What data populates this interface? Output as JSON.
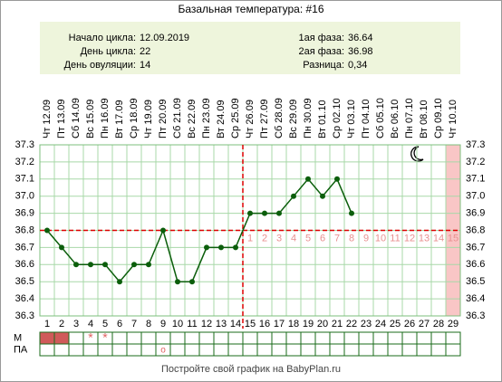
{
  "chart_data": {
    "type": "line",
    "title": "Базальная температура: #16",
    "info_left": [
      {
        "label": "Начало цикла:",
        "value": "12.09.2019"
      },
      {
        "label": "День цикла:",
        "value": "22"
      },
      {
        "label": "День овуляции:",
        "value": "14"
      }
    ],
    "info_right": [
      {
        "label": "1ая фаза:",
        "value": "36.64"
      },
      {
        "label": "2ая фаза:",
        "value": "36.98"
      },
      {
        "label": "Разница:",
        "value": "0,34"
      }
    ],
    "categories": [
      1,
      2,
      3,
      4,
      5,
      6,
      7,
      8,
      9,
      10,
      11,
      12,
      13,
      14,
      15,
      16,
      17,
      18,
      19,
      20,
      21,
      22,
      23,
      24,
      25,
      26,
      27,
      28,
      29
    ],
    "dates": [
      "Чт 12.09",
      "Пт 13.09",
      "Сб 14.09",
      "Вс 15.09",
      "Пн 16.09",
      "Вт 17.09",
      "Ср 18.09",
      "Чт 19.09",
      "Пт 20.09",
      "Сб 21.09",
      "Вс 22.09",
      "Пн 23.09",
      "Вт 24.09",
      "Ср 25.09",
      "Чт 26.09",
      "Пт 27.09",
      "Сб 28.09",
      "Вс 29.09",
      "Пн 30.09",
      "Вт 01.10",
      "Ср 02.10",
      "Чт 03.10",
      "Пт 04.10",
      "Сб 05.10",
      "Вс 06.10",
      "Пн 07.10",
      "Вт 08.10",
      "Ср 09.10",
      "Чт 10.10"
    ],
    "series": [
      {
        "name": "Температура",
        "color": "#0b5e0b",
        "values": [
          36.8,
          36.7,
          36.6,
          36.6,
          36.6,
          36.5,
          36.6,
          36.6,
          36.8,
          36.5,
          36.5,
          36.7,
          36.7,
          36.7,
          36.9,
          36.9,
          36.9,
          37.0,
          37.1,
          37.0,
          37.1,
          36.9,
          null,
          null,
          null,
          null,
          null,
          null,
          null
        ]
      }
    ],
    "phase_days": [
      null,
      null,
      null,
      null,
      null,
      null,
      null,
      null,
      null,
      null,
      null,
      null,
      null,
      null,
      1,
      2,
      3,
      4,
      5,
      6,
      7,
      8,
      9,
      10,
      11,
      12,
      13,
      14,
      15
    ],
    "coverline": 36.8,
    "ovulation_day": 14,
    "highlight_day": 29,
    "ylim": [
      36.3,
      37.3
    ],
    "yticks": [
      36.3,
      36.4,
      36.5,
      36.6,
      36.7,
      36.8,
      36.9,
      {
        "value": 37,
        "label": "37.0"
      },
      37.1,
      37.2,
      37.3
    ],
    "grid": true,
    "rows": [
      {
        "label": "М",
        "filled_days": [
          1,
          2
        ],
        "symbols": [
          null,
          null,
          null,
          "*",
          "*",
          null,
          null,
          null,
          null,
          null,
          null,
          null,
          null,
          null,
          null,
          null,
          null,
          null,
          null,
          null,
          null,
          null,
          null,
          null,
          null,
          null,
          null,
          null,
          null
        ]
      },
      {
        "label": "ПА",
        "filled_days": [],
        "symbols": [
          null,
          null,
          null,
          null,
          null,
          null,
          null,
          null,
          "o",
          null,
          null,
          null,
          null,
          null,
          null,
          null,
          null,
          null,
          null,
          null,
          null,
          null,
          null,
          null,
          null,
          null,
          null,
          null,
          null
        ]
      }
    ],
    "footer": "Постройте свой график на BabyPlan.ru"
  }
}
